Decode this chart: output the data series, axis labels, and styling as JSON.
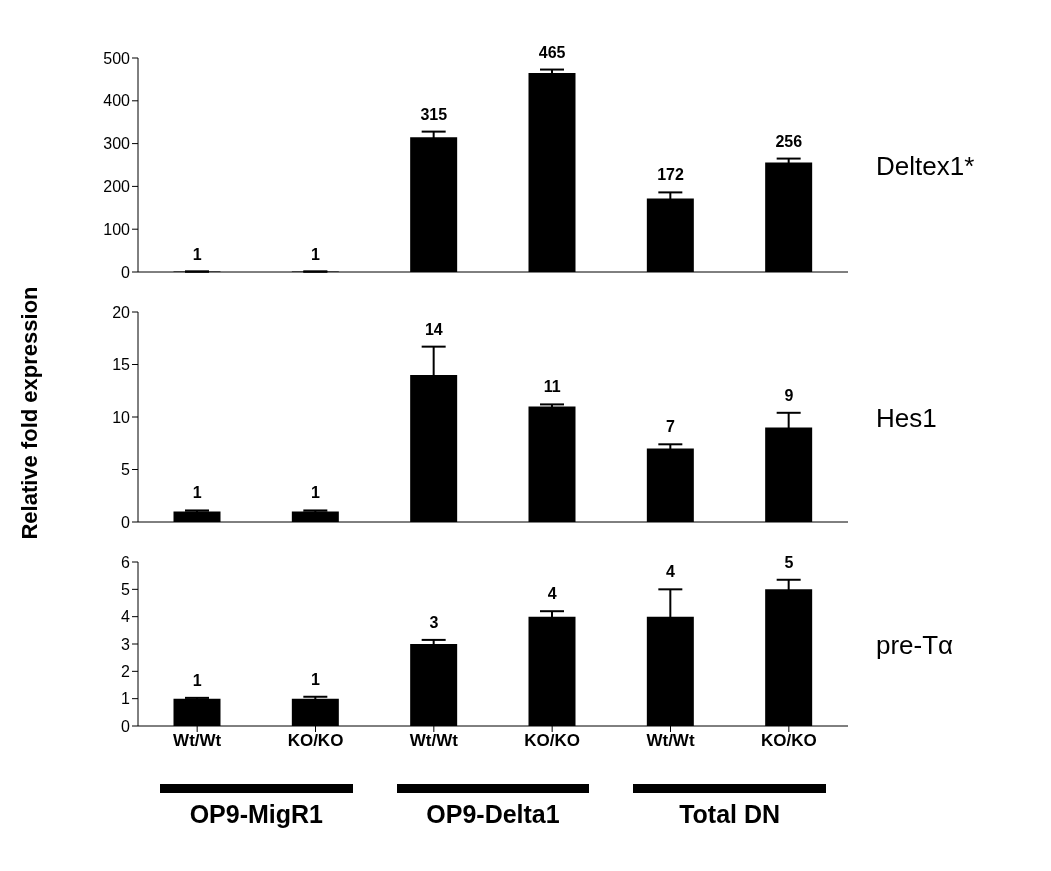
{
  "chart_data": [
    {
      "type": "bar",
      "y2label": "Deltex1*",
      "categories": [
        null,
        null,
        null,
        null,
        null,
        null
      ],
      "color": "#000000",
      "values": [
        1,
        1,
        315,
        465,
        172,
        256
      ],
      "data_labels": true,
      "errors": [
        null,
        null,
        13,
        8,
        14,
        9
      ],
      "ylim": [
        0,
        500
      ],
      "yticks": [
        0,
        100,
        200,
        300,
        400,
        500
      ],
      "tick_labels": "y",
      "grid": false,
      "legend": false
    },
    {
      "type": "bar",
      "y2label": "Hes1",
      "ylabel": "Relative fold expression",
      "categories": [
        null,
        null,
        null,
        null,
        null,
        null
      ],
      "color": "#000000",
      "values": [
        1,
        1,
        14,
        11,
        7,
        9
      ],
      "data_labels": true,
      "errors": [
        0.1,
        0.1,
        2.7,
        0.2,
        0.4,
        1.4
      ],
      "ylim": [
        0,
        20
      ],
      "yticks": [
        0,
        5,
        10,
        15,
        20
      ],
      "tick_labels": "y",
      "grid": false,
      "legend": false
    },
    {
      "type": "bar",
      "y2label": "pre-Tα",
      "categories": [
        "Wt/Wt",
        "KO/KO",
        "Wt/Wt",
        "KO/KO",
        "Wt/Wt",
        "KO/KO"
      ],
      "color": "#000000",
      "values": [
        1,
        1,
        3,
        4,
        4,
        5
      ],
      "data_labels": true,
      "errors": [
        0.03,
        0.07,
        0.15,
        0.2,
        1.0,
        0.35
      ],
      "ylim": [
        0,
        6
      ],
      "yticks": [
        0,
        1,
        2,
        3,
        4,
        5,
        6
      ],
      "grid": false,
      "legend": false,
      "annotations": [
        "OP9-MigR1",
        "OP9-Delta1",
        "Total DN"
      ]
    }
  ]
}
